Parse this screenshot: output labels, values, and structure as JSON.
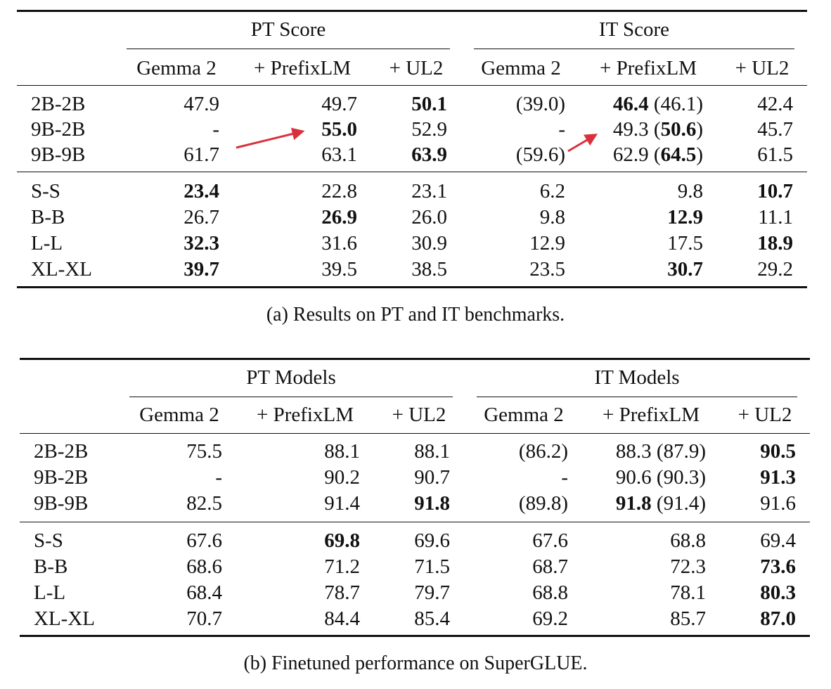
{
  "table_a": {
    "group_headers": [
      "PT Score",
      "IT Score"
    ],
    "sub_headers": [
      "Gemma 2",
      "+ PrefixLM",
      "+ UL2",
      "Gemma 2",
      "+ PrefixLM",
      "+ UL2"
    ],
    "section1": [
      {
        "label": "2B-2B",
        "cells": [
          [
            {
              "t": "47.9"
            }
          ],
          [
            {
              "t": "49.7"
            }
          ],
          [
            {
              "t": "50.1",
              "b": true
            }
          ],
          [
            {
              "t": "(39.0)"
            }
          ],
          [
            {
              "t": "46.4",
              "b": true
            },
            {
              "t": " (46.1)"
            }
          ],
          [
            {
              "t": "42.4"
            }
          ]
        ]
      },
      {
        "label": "9B-2B",
        "cells": [
          [
            {
              "t": "-"
            }
          ],
          [
            {
              "t": "55.0",
              "b": true
            }
          ],
          [
            {
              "t": "52.9"
            }
          ],
          [
            {
              "t": "-"
            }
          ],
          [
            {
              "t": "49.3 ("
            },
            {
              "t": "50.6",
              "b": true
            },
            {
              "t": ")"
            }
          ],
          [
            {
              "t": "45.7"
            }
          ]
        ]
      },
      {
        "label": "9B-9B",
        "cells": [
          [
            {
              "t": "61.7"
            }
          ],
          [
            {
              "t": "63.1"
            }
          ],
          [
            {
              "t": "63.9",
              "b": true
            }
          ],
          [
            {
              "t": "(59.6)"
            }
          ],
          [
            {
              "t": "62.9 ("
            },
            {
              "t": "64.5",
              "b": true
            },
            {
              "t": ")"
            }
          ],
          [
            {
              "t": "61.5"
            }
          ]
        ]
      }
    ],
    "section2": [
      {
        "label": "S-S",
        "cells": [
          [
            {
              "t": "23.4",
              "b": true
            }
          ],
          [
            {
              "t": "22.8"
            }
          ],
          [
            {
              "t": "23.1"
            }
          ],
          [
            {
              "t": "6.2"
            }
          ],
          [
            {
              "t": "9.8"
            }
          ],
          [
            {
              "t": "10.7",
              "b": true
            }
          ]
        ]
      },
      {
        "label": "B-B",
        "cells": [
          [
            {
              "t": "26.7"
            }
          ],
          [
            {
              "t": "26.9",
              "b": true
            }
          ],
          [
            {
              "t": "26.0"
            }
          ],
          [
            {
              "t": "9.8"
            }
          ],
          [
            {
              "t": "12.9",
              "b": true
            }
          ],
          [
            {
              "t": "11.1"
            }
          ]
        ]
      },
      {
        "label": "L-L",
        "cells": [
          [
            {
              "t": "32.3",
              "b": true
            }
          ],
          [
            {
              "t": "31.6"
            }
          ],
          [
            {
              "t": "30.9"
            }
          ],
          [
            {
              "t": "12.9"
            }
          ],
          [
            {
              "t": "17.5"
            }
          ],
          [
            {
              "t": "18.9",
              "b": true
            }
          ]
        ]
      },
      {
        "label": "XL-XL",
        "cells": [
          [
            {
              "t": "39.7",
              "b": true
            }
          ],
          [
            {
              "t": "39.5"
            }
          ],
          [
            {
              "t": "38.5"
            }
          ],
          [
            {
              "t": "23.5"
            }
          ],
          [
            {
              "t": "30.7",
              "b": true
            }
          ],
          [
            {
              "t": "29.2"
            }
          ]
        ]
      }
    ],
    "caption": "(a)  Results on PT and IT benchmarks."
  },
  "table_b": {
    "group_headers": [
      "PT Models",
      "IT Models"
    ],
    "sub_headers": [
      "Gemma 2",
      "+ PrefixLM",
      "+ UL2",
      "Gemma 2",
      "+ PrefixLM",
      "+ UL2"
    ],
    "section1": [
      {
        "label": "2B-2B",
        "cells": [
          [
            {
              "t": "75.5"
            }
          ],
          [
            {
              "t": "88.1"
            }
          ],
          [
            {
              "t": "88.1"
            }
          ],
          [
            {
              "t": "(86.2)"
            }
          ],
          [
            {
              "t": "88.3 (87.9)"
            }
          ],
          [
            {
              "t": "90.5",
              "b": true
            }
          ]
        ]
      },
      {
        "label": "9B-2B",
        "cells": [
          [
            {
              "t": "-"
            }
          ],
          [
            {
              "t": "90.2"
            }
          ],
          [
            {
              "t": "90.7"
            }
          ],
          [
            {
              "t": "-"
            }
          ],
          [
            {
              "t": "90.6 (90.3)"
            }
          ],
          [
            {
              "t": "91.3",
              "b": true
            }
          ]
        ]
      },
      {
        "label": "9B-9B",
        "cells": [
          [
            {
              "t": "82.5"
            }
          ],
          [
            {
              "t": "91.4"
            }
          ],
          [
            {
              "t": "91.8",
              "b": true
            }
          ],
          [
            {
              "t": "(89.8)"
            }
          ],
          [
            {
              "t": "91.8",
              "b": true
            },
            {
              "t": " (91.4)"
            }
          ],
          [
            {
              "t": "91.6"
            }
          ]
        ]
      }
    ],
    "section2": [
      {
        "label": "S-S",
        "cells": [
          [
            {
              "t": "67.6"
            }
          ],
          [
            {
              "t": "69.8",
              "b": true
            }
          ],
          [
            {
              "t": "69.6"
            }
          ],
          [
            {
              "t": "67.6"
            }
          ],
          [
            {
              "t": "68.8"
            }
          ],
          [
            {
              "t": "69.4"
            }
          ]
        ]
      },
      {
        "label": "B-B",
        "cells": [
          [
            {
              "t": "68.6"
            }
          ],
          [
            {
              "t": "71.2"
            }
          ],
          [
            {
              "t": "71.5"
            }
          ],
          [
            {
              "t": "68.7"
            }
          ],
          [
            {
              "t": "72.3"
            }
          ],
          [
            {
              "t": "73.6",
              "b": true
            }
          ]
        ]
      },
      {
        "label": "L-L",
        "cells": [
          [
            {
              "t": "68.4"
            }
          ],
          [
            {
              "t": "78.7"
            }
          ],
          [
            {
              "t": "79.7"
            }
          ],
          [
            {
              "t": "68.8"
            }
          ],
          [
            {
              "t": "78.1"
            }
          ],
          [
            {
              "t": "80.3",
              "b": true
            }
          ]
        ]
      },
      {
        "label": "XL-XL",
        "cells": [
          [
            {
              "t": "70.7"
            }
          ],
          [
            {
              "t": "84.4"
            }
          ],
          [
            {
              "t": "85.4"
            }
          ],
          [
            {
              "t": "69.2"
            }
          ],
          [
            {
              "t": "85.7"
            }
          ],
          [
            {
              "t": "87.0",
              "b": true
            }
          ]
        ]
      }
    ],
    "caption": "(b)  Finetuned performance on SuperGLUE."
  },
  "arrow_color": "#d9313c"
}
